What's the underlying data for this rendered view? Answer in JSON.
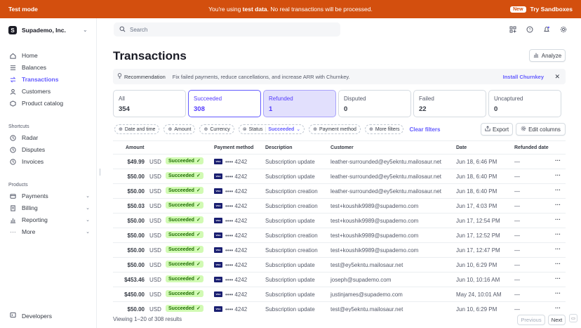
{
  "banner": {
    "mode": "Test mode",
    "message_prefix": "You're using ",
    "message_bold": "test data",
    "message_suffix": ". No real transactions will be processed.",
    "new_badge": "New",
    "sandboxes": "Try Sandboxes",
    "color": "#d34f0e"
  },
  "account": {
    "logo": "S",
    "name": "Supademo, Inc."
  },
  "nav": {
    "items": [
      {
        "label": "Home",
        "icon": "home-icon"
      },
      {
        "label": "Balances",
        "icon": "balances-icon"
      },
      {
        "label": "Transactions",
        "icon": "transactions-icon",
        "active": true
      },
      {
        "label": "Customers",
        "icon": "customers-icon"
      },
      {
        "label": "Product catalog",
        "icon": "product-catalog-icon"
      }
    ],
    "shortcuts_heading": "Shortcuts",
    "shortcuts": [
      {
        "label": "Radar",
        "icon": "clock-icon"
      },
      {
        "label": "Disputes",
        "icon": "clock-icon"
      },
      {
        "label": "Invoices",
        "icon": "clock-icon"
      }
    ],
    "products_heading": "Products",
    "products": [
      {
        "label": "Payments",
        "icon": "payments-icon"
      },
      {
        "label": "Billing",
        "icon": "billing-icon"
      },
      {
        "label": "Reporting",
        "icon": "reporting-icon"
      },
      {
        "label": "More",
        "icon": "more-icon"
      }
    ],
    "developers": "Developers"
  },
  "search": {
    "placeholder": "Search"
  },
  "page": {
    "title": "Transactions",
    "analyze": "Analyze"
  },
  "recommendation": {
    "label": "Recommendation",
    "text": "Fix failed payments, reduce cancellations, and increase ARR with Churnkey.",
    "action": "Install Churnkey"
  },
  "status_cards": [
    {
      "label": "All",
      "count": "354"
    },
    {
      "label": "Succeeded",
      "count": "308"
    },
    {
      "label": "Refunded",
      "count": "1"
    },
    {
      "label": "Disputed",
      "count": "0"
    },
    {
      "label": "Failed",
      "count": "22"
    },
    {
      "label": "Uncaptured",
      "count": "0"
    }
  ],
  "filters": {
    "date": "Date and time",
    "amount": "Amount",
    "currency": "Currency",
    "status": "Status",
    "status_value": "Succeeded",
    "payment_method": "Payment method",
    "more": "More filters",
    "clear": "Clear filters",
    "export": "Export",
    "edit_columns": "Edit columns"
  },
  "table": {
    "headers": {
      "amount": "Amount",
      "payment_method": "Payment method",
      "description": "Description",
      "customer": "Customer",
      "date": "Date",
      "refunded_date": "Refunded date"
    },
    "rows": [
      {
        "amount": "$49.99",
        "currency": "USD",
        "status": "Succeeded",
        "card": "•••• 4242",
        "description": "Subscription update",
        "customer": "leather-surrounded@ey5ekntu.mailosaur.net",
        "date": "Jun 18, 6:46 PM",
        "refunded": "—"
      },
      {
        "amount": "$50.00",
        "currency": "USD",
        "status": "Succeeded",
        "card": "•••• 4242",
        "description": "Subscription update",
        "customer": "leather-surrounded@ey5ekntu.mailosaur.net",
        "date": "Jun 18, 6:40 PM",
        "refunded": "—"
      },
      {
        "amount": "$50.00",
        "currency": "USD",
        "status": "Succeeded",
        "card": "•••• 4242",
        "description": "Subscription creation",
        "customer": "leather-surrounded@ey5ekntu.mailosaur.net",
        "date": "Jun 18, 6:40 PM",
        "refunded": "—"
      },
      {
        "amount": "$50.03",
        "currency": "USD",
        "status": "Succeeded",
        "card": "•••• 4242",
        "description": "Subscription creation",
        "customer": "test+koushik9989@supademo.com",
        "date": "Jun 17, 4:03 PM",
        "refunded": "—"
      },
      {
        "amount": "$50.00",
        "currency": "USD",
        "status": "Succeeded",
        "card": "•••• 4242",
        "description": "Subscription update",
        "customer": "test+koushik9989@supademo.com",
        "date": "Jun 17, 12:54 PM",
        "refunded": "—"
      },
      {
        "amount": "$50.00",
        "currency": "USD",
        "status": "Succeeded",
        "card": "•••• 4242",
        "description": "Subscription creation",
        "customer": "test+koushik9989@supademo.com",
        "date": "Jun 17, 12:52 PM",
        "refunded": "—"
      },
      {
        "amount": "$50.00",
        "currency": "USD",
        "status": "Succeeded",
        "card": "•••• 4242",
        "description": "Subscription creation",
        "customer": "test+koushik9989@supademo.com",
        "date": "Jun 17, 12:47 PM",
        "refunded": "—"
      },
      {
        "amount": "$50.00",
        "currency": "USD",
        "status": "Succeeded",
        "card": "•••• 4242",
        "description": "Subscription update",
        "customer": "test@ey5ekntu.mailosaur.net",
        "date": "Jun 10, 6:29 PM",
        "refunded": "—"
      },
      {
        "amount": "$453.46",
        "currency": "USD",
        "status": "Succeeded",
        "card": "•••• 4242",
        "description": "Subscription update",
        "customer": "joseph@supademo.com",
        "date": "Jun 10, 10:16 AM",
        "refunded": "—"
      },
      {
        "amount": "$450.00",
        "currency": "USD",
        "status": "Succeeded",
        "card": "•••• 4242",
        "description": "Subscription update",
        "customer": "justinjames@supademo.com",
        "date": "May 24, 10:01 AM",
        "refunded": "—"
      },
      {
        "amount": "$50.00",
        "currency": "USD",
        "status": "Succeeded",
        "card": "•••• 4242",
        "description": "Subscription update",
        "customer": "test@ey5ekntu.mailosaur.net",
        "date": "Jun 10, 6:29 PM",
        "refunded": "—"
      }
    ]
  },
  "pagination": {
    "summary": "Viewing 1–20 of 308 results",
    "previous": "Previous",
    "next": "Next"
  },
  "colors": {
    "accent": "#635bff",
    "success_bg": "#d1fab3",
    "success_fg": "#217005"
  }
}
